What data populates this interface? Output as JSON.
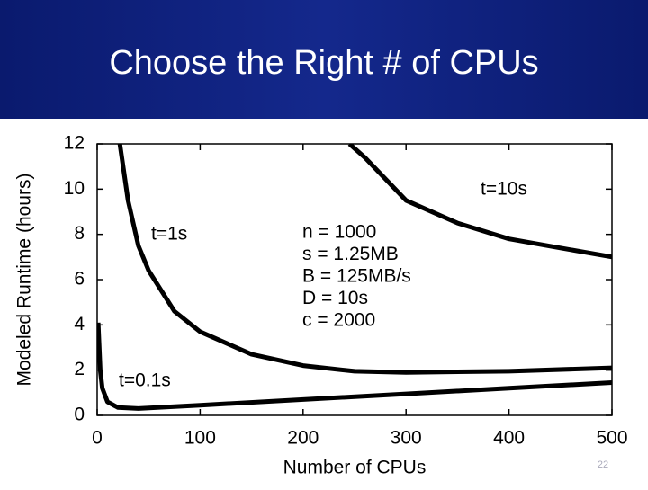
{
  "slide_title": "Choose the Right # of CPUs",
  "page_number": "22",
  "chart_data": {
    "type": "line",
    "x_label": "Number of CPUs",
    "y_label": "Modeled Runtime (hours)",
    "xlim": [
      0,
      500
    ],
    "ylim": [
      0,
      12
    ],
    "xticks": [
      0,
      100,
      200,
      300,
      400,
      500
    ],
    "yticks": [
      0,
      2,
      4,
      6,
      8,
      10,
      12
    ],
    "grid": false,
    "annotations": [
      "n = 1000",
      "s = 1.25MB",
      "B = 125MB/s",
      "D = 10s",
      "c = 2000"
    ],
    "series": [
      {
        "name": "t=10s",
        "color": "#000000",
        "x": [
          245,
          260,
          300,
          350,
          400,
          450,
          500
        ],
        "values": [
          12,
          11.4,
          9.5,
          8.5,
          7.8,
          7.4,
          7.0
        ]
      },
      {
        "name": "t=1s",
        "color": "#000000",
        "x": [
          22,
          30,
          40,
          50,
          75,
          100,
          150,
          200,
          250,
          300,
          400,
          500
        ],
        "values": [
          12,
          9.5,
          7.5,
          6.4,
          4.6,
          3.7,
          2.7,
          2.2,
          1.95,
          1.9,
          1.95,
          2.1
        ]
      },
      {
        "name": "t=0.1s",
        "color": "#000000",
        "x": [
          1,
          3,
          5,
          10,
          20,
          40,
          100,
          200,
          300,
          400,
          500
        ],
        "values": [
          4.1,
          2,
          1.2,
          0.6,
          0.35,
          0.3,
          0.45,
          0.7,
          0.95,
          1.2,
          1.45
        ]
      }
    ]
  }
}
